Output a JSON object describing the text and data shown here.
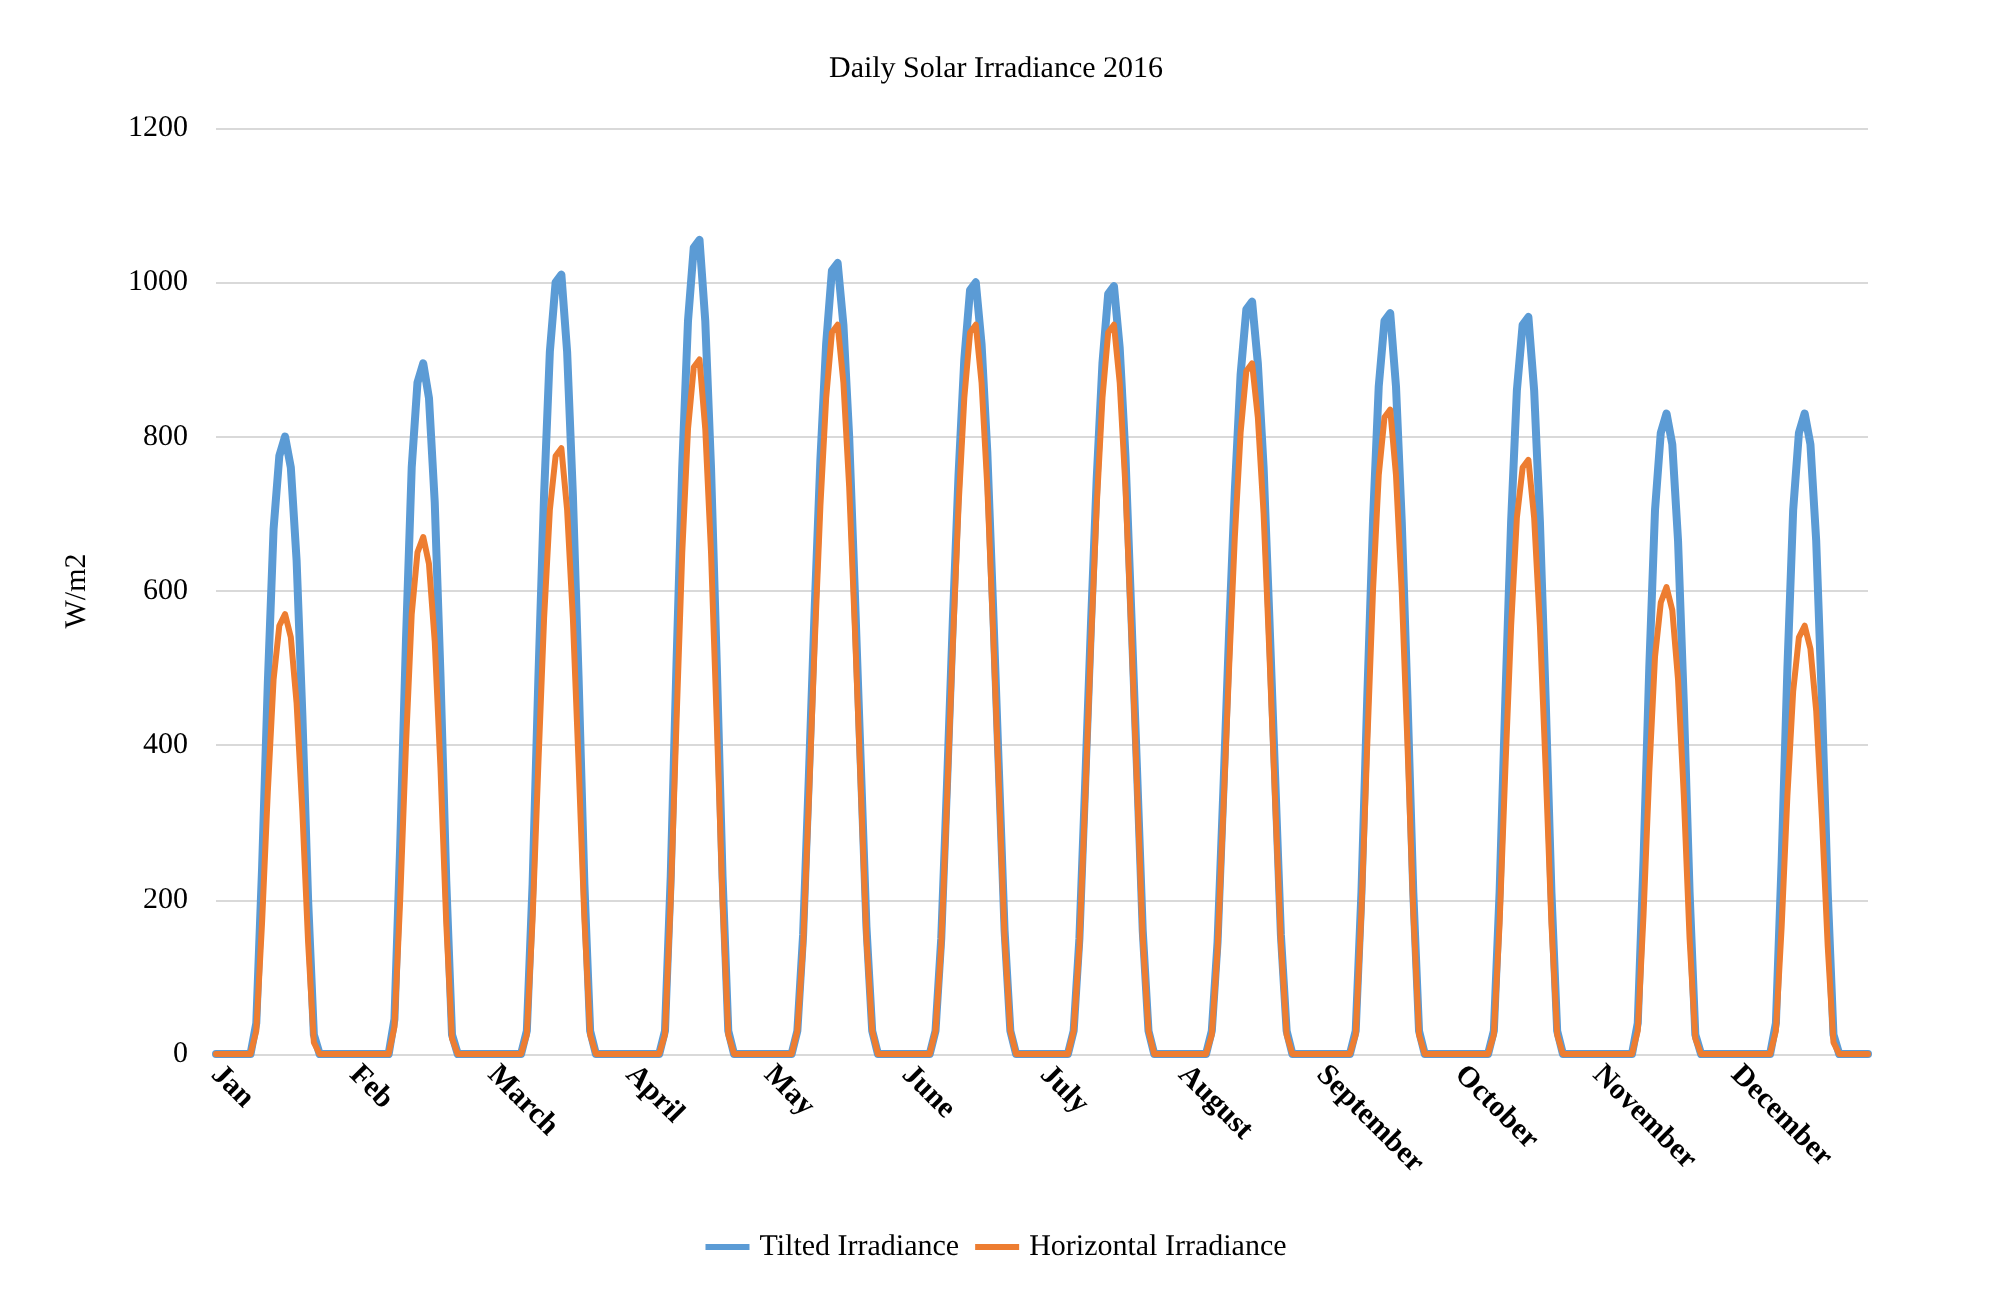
{
  "chart_data": {
    "type": "line",
    "title": "Daily Solar Irradiance 2016",
    "ylabel": "W/m2",
    "categories": [
      "Jan",
      null,
      null,
      null,
      null,
      null,
      null,
      null,
      null,
      null,
      null,
      null,
      null,
      null,
      null,
      null,
      null,
      null,
      null,
      null,
      null,
      null,
      null,
      null,
      "Feb",
      null,
      null,
      null,
      null,
      null,
      null,
      null,
      null,
      null,
      null,
      null,
      null,
      null,
      null,
      null,
      null,
      null,
      null,
      null,
      null,
      null,
      null,
      null,
      "March",
      null,
      null,
      null,
      null,
      null,
      null,
      null,
      null,
      null,
      null,
      null,
      null,
      null,
      null,
      null,
      null,
      null,
      null,
      null,
      null,
      null,
      null,
      null,
      "April",
      null,
      null,
      null,
      null,
      null,
      null,
      null,
      null,
      null,
      null,
      null,
      null,
      null,
      null,
      null,
      null,
      null,
      null,
      null,
      null,
      null,
      null,
      null,
      "May",
      null,
      null,
      null,
      null,
      null,
      null,
      null,
      null,
      null,
      null,
      null,
      null,
      null,
      null,
      null,
      null,
      null,
      null,
      null,
      null,
      null,
      null,
      null,
      "June",
      null,
      null,
      null,
      null,
      null,
      null,
      null,
      null,
      null,
      null,
      null,
      null,
      null,
      null,
      null,
      null,
      null,
      null,
      null,
      null,
      null,
      null,
      null,
      "July",
      null,
      null,
      null,
      null,
      null,
      null,
      null,
      null,
      null,
      null,
      null,
      null,
      null,
      null,
      null,
      null,
      null,
      null,
      null,
      null,
      null,
      null,
      null,
      "August",
      null,
      null,
      null,
      null,
      null,
      null,
      null,
      null,
      null,
      null,
      null,
      null,
      null,
      null,
      null,
      null,
      null,
      null,
      null,
      null,
      null,
      null,
      null,
      "September",
      null,
      null,
      null,
      null,
      null,
      null,
      null,
      null,
      null,
      null,
      null,
      null,
      null,
      null,
      null,
      null,
      null,
      null,
      null,
      null,
      null,
      null,
      null,
      "October",
      null,
      null,
      null,
      null,
      null,
      null,
      null,
      null,
      null,
      null,
      null,
      null,
      null,
      null,
      null,
      null,
      null,
      null,
      null,
      null,
      null,
      null,
      null,
      "November",
      null,
      null,
      null,
      null,
      null,
      null,
      null,
      null,
      null,
      null,
      null,
      null,
      null,
      null,
      null,
      null,
      null,
      null,
      null,
      null,
      null,
      null,
      null,
      "December",
      null,
      null,
      null,
      null,
      null,
      null,
      null,
      null,
      null,
      null,
      null,
      null,
      null,
      null,
      null,
      null,
      null,
      null,
      null,
      null,
      null,
      null,
      null
    ],
    "series": [
      {
        "name": "Tilted Irradiance",
        "color": "#5b9bd5",
        "values": [
          0,
          0,
          0,
          0,
          0,
          0,
          0,
          40,
          240,
          480,
          680,
          775,
          800,
          760,
          640,
          440,
          200,
          25,
          0,
          0,
          0,
          0,
          0,
          0,
          0,
          0,
          0,
          0,
          0,
          0,
          0,
          45,
          270,
          535,
          760,
          870,
          895,
          850,
          715,
          490,
          225,
          25,
          0,
          0,
          0,
          0,
          0,
          0,
          0,
          0,
          0,
          0,
          0,
          0,
          30,
          220,
          485,
          725,
          910,
          1000,
          1010,
          910,
          725,
          485,
          220,
          30,
          0,
          0,
          0,
          0,
          0,
          0,
          0,
          0,
          0,
          0,
          0,
          0,
          30,
          230,
          505,
          760,
          950,
          1045,
          1055,
          950,
          760,
          505,
          230,
          30,
          0,
          0,
          0,
          0,
          0,
          0,
          0,
          0,
          0,
          0,
          0,
          30,
          155,
          360,
          575,
          770,
          920,
          1015,
          1025,
          945,
          800,
          595,
          380,
          165,
          30,
          0,
          0,
          0,
          0,
          0,
          0,
          0,
          0,
          0,
          0,
          30,
          150,
          350,
          560,
          750,
          900,
          990,
          1000,
          920,
          780,
          580,
          370,
          160,
          30,
          0,
          0,
          0,
          0,
          0,
          0,
          0,
          0,
          0,
          0,
          30,
          150,
          350,
          555,
          745,
          895,
          985,
          995,
          915,
          775,
          575,
          370,
          160,
          30,
          0,
          0,
          0,
          0,
          0,
          0,
          0,
          0,
          0,
          0,
          30,
          145,
          340,
          545,
          730,
          880,
          965,
          975,
          895,
          760,
          565,
          360,
          155,
          30,
          0,
          0,
          0,
          0,
          0,
          0,
          0,
          0,
          0,
          0,
          0,
          30,
          210,
          460,
          690,
          865,
          950,
          960,
          865,
          690,
          460,
          210,
          30,
          0,
          0,
          0,
          0,
          0,
          0,
          0,
          0,
          0,
          0,
          0,
          0,
          30,
          210,
          460,
          690,
          860,
          945,
          955,
          860,
          690,
          460,
          210,
          30,
          0,
          0,
          0,
          0,
          0,
          0,
          0,
          0,
          0,
          0,
          0,
          0,
          0,
          40,
          250,
          500,
          705,
          805,
          830,
          790,
          665,
          455,
          210,
          25,
          0,
          0,
          0,
          0,
          0,
          0,
          0,
          0,
          0,
          0,
          0,
          0,
          0,
          40,
          250,
          500,
          705,
          805,
          830,
          790,
          665,
          455,
          210,
          25,
          0,
          0,
          0,
          0,
          0,
          0
        ]
      },
      {
        "name": "Horizontal Irradiance",
        "color": "#ed7d31",
        "values": [
          0,
          0,
          0,
          0,
          0,
          0,
          0,
          30,
          170,
          340,
          485,
          555,
          570,
          540,
          455,
          315,
          145,
          15,
          0,
          0,
          0,
          0,
          0,
          0,
          0,
          0,
          0,
          0,
          0,
          0,
          0,
          35,
          200,
          400,
          570,
          650,
          670,
          635,
          535,
          370,
          170,
          20,
          0,
          0,
          0,
          0,
          0,
          0,
          0,
          0,
          0,
          0,
          0,
          0,
          25,
          175,
          375,
          565,
          705,
          775,
          785,
          705,
          565,
          375,
          175,
          25,
          0,
          0,
          0,
          0,
          0,
          0,
          0,
          0,
          0,
          0,
          0,
          0,
          25,
          200,
          430,
          650,
          810,
          890,
          900,
          810,
          650,
          430,
          200,
          25,
          0,
          0,
          0,
          0,
          0,
          0,
          0,
          0,
          0,
          0,
          0,
          30,
          140,
          330,
          530,
          710,
          850,
          935,
          945,
          870,
          735,
          550,
          350,
          150,
          30,
          0,
          0,
          0,
          0,
          0,
          0,
          0,
          0,
          0,
          0,
          30,
          140,
          330,
          530,
          710,
          850,
          935,
          945,
          870,
          735,
          550,
          350,
          150,
          30,
          0,
          0,
          0,
          0,
          0,
          0,
          0,
          0,
          0,
          0,
          30,
          140,
          330,
          530,
          710,
          850,
          935,
          945,
          870,
          735,
          550,
          350,
          150,
          30,
          0,
          0,
          0,
          0,
          0,
          0,
          0,
          0,
          0,
          0,
          25,
          135,
          315,
          500,
          670,
          805,
          885,
          895,
          825,
          700,
          520,
          330,
          145,
          25,
          0,
          0,
          0,
          0,
          0,
          0,
          0,
          0,
          0,
          0,
          0,
          25,
          185,
          400,
          600,
          750,
          825,
          835,
          750,
          600,
          400,
          185,
          25,
          0,
          0,
          0,
          0,
          0,
          0,
          0,
          0,
          0,
          0,
          0,
          0,
          25,
          170,
          370,
          555,
          695,
          760,
          770,
          695,
          555,
          370,
          170,
          25,
          0,
          0,
          0,
          0,
          0,
          0,
          0,
          0,
          0,
          0,
          0,
          0,
          0,
          30,
          180,
          365,
          515,
          585,
          605,
          575,
          485,
          335,
          150,
          20,
          0,
          0,
          0,
          0,
          0,
          0,
          0,
          0,
          0,
          0,
          0,
          0,
          0,
          30,
          165,
          335,
          470,
          540,
          555,
          525,
          445,
          305,
          140,
          15,
          0,
          0,
          0,
          0,
          0,
          0
        ]
      }
    ],
    "ylim": [
      0,
      1200
    ],
    "yticks": [
      0,
      200,
      400,
      600,
      800,
      1000,
      1200
    ],
    "grid": "y",
    "legend": "bottom",
    "marker": "none",
    "line_style": "solid"
  }
}
